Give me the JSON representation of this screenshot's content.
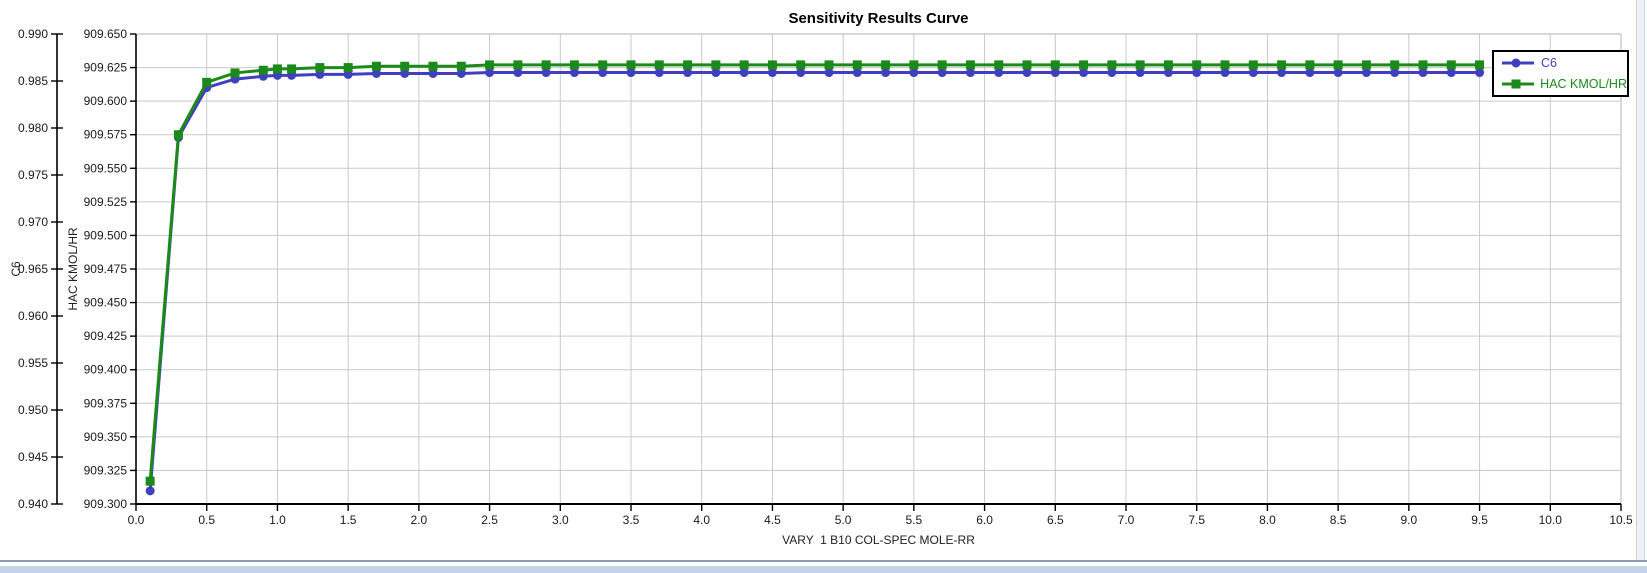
{
  "window": {
    "title": "Sensitivity Results Curve"
  },
  "colors": {
    "c6_series": "#403fc0",
    "hac_series": "#1b8a1b",
    "gridline": "#c9c9c9",
    "plot_border": "#c0c0c0",
    "axis_line": "#000000",
    "tick_label": "#1a1a1a",
    "legend_border": "#000000",
    "bottom_strip_line": "#8e9db3",
    "bottom_strip_band": "#c4d3e6",
    "scrollbar_track": "#eef2f7",
    "scrollbar_border": "#c9d2de"
  },
  "chart_data": {
    "type": "line",
    "title": "Sensitivity Results Curve",
    "xlabel": "VARY  1 B10 COL-SPEC MOLE-RR",
    "grid": true,
    "legend_position": "top-right",
    "x_axis": {
      "min": 0.0,
      "max": 10.5,
      "tick_step": 0.5,
      "ticks": [
        "0.0",
        "0.5",
        "1.0",
        "1.5",
        "2.0",
        "2.5",
        "3.0",
        "3.5",
        "4.0",
        "4.5",
        "5.0",
        "5.5",
        "6.0",
        "6.5",
        "7.0",
        "7.5",
        "8.0",
        "8.5",
        "9.0",
        "9.5",
        "10.0",
        "10.5"
      ]
    },
    "y_axes": [
      {
        "name": "C6",
        "min": 0.94,
        "max": 0.99,
        "tick_step": 0.005,
        "ticks": [
          "0.940",
          "0.945",
          "0.950",
          "0.955",
          "0.960",
          "0.965",
          "0.970",
          "0.975",
          "0.980",
          "0.985",
          "0.990"
        ]
      },
      {
        "name": "HAC KMOL/HR",
        "min": 909.3,
        "max": 909.65,
        "tick_step": 0.025,
        "ticks": [
          "909.300",
          "909.325",
          "909.350",
          "909.375",
          "909.400",
          "909.425",
          "909.450",
          "909.475",
          "909.500",
          "909.525",
          "909.550",
          "909.575",
          "909.600",
          "909.625",
          "909.650"
        ]
      }
    ],
    "x": [
      0.1,
      0.3,
      0.5,
      0.7,
      0.9,
      1.0,
      1.1,
      1.3,
      1.5,
      1.7,
      1.9,
      2.1,
      2.3,
      2.5,
      2.7,
      2.9,
      3.1,
      3.3,
      3.5,
      3.7,
      3.9,
      4.1,
      4.3,
      4.5,
      4.7,
      4.9,
      5.1,
      5.3,
      5.5,
      5.7,
      5.9,
      6.1,
      6.3,
      6.5,
      6.7,
      6.9,
      7.1,
      7.3,
      7.5,
      7.7,
      7.9,
      8.1,
      8.3,
      8.5,
      8.7,
      8.9,
      9.1,
      9.3,
      9.5
    ],
    "series": [
      {
        "name": "C6",
        "axis": "C6",
        "color": "#403fc0",
        "marker": "circle",
        "values": [
          0.9414,
          0.979,
          0.9843,
          0.9852,
          0.9855,
          0.9856,
          0.9856,
          0.9857,
          0.9857,
          0.9858,
          0.9858,
          0.9858,
          0.9858,
          0.9859,
          0.9859,
          0.9859,
          0.9859,
          0.9859,
          0.9859,
          0.9859,
          0.9859,
          0.9859,
          0.9859,
          0.9859,
          0.9859,
          0.9859,
          0.9859,
          0.9859,
          0.9859,
          0.9859,
          0.9859,
          0.9859,
          0.9859,
          0.9859,
          0.9859,
          0.9859,
          0.9859,
          0.9859,
          0.9859,
          0.9859,
          0.9859,
          0.9859,
          0.9859,
          0.9859,
          0.9859,
          0.9859,
          0.9859,
          0.9859,
          0.9859
        ]
      },
      {
        "name": "HAC KMOL/HR",
        "axis": "HAC KMOL/HR",
        "color": "#1b8a1b",
        "marker": "square",
        "values": [
          909.317,
          909.575,
          909.614,
          909.621,
          909.623,
          909.624,
          909.624,
          909.625,
          909.625,
          909.626,
          909.626,
          909.626,
          909.626,
          909.627,
          909.627,
          909.627,
          909.627,
          909.627,
          909.627,
          909.627,
          909.627,
          909.627,
          909.627,
          909.627,
          909.627,
          909.627,
          909.627,
          909.627,
          909.627,
          909.627,
          909.627,
          909.627,
          909.627,
          909.627,
          909.627,
          909.627,
          909.627,
          909.627,
          909.627,
          909.627,
          909.627,
          909.627,
          909.627,
          909.627,
          909.627,
          909.627,
          909.627,
          909.627,
          909.627
        ]
      }
    ]
  }
}
